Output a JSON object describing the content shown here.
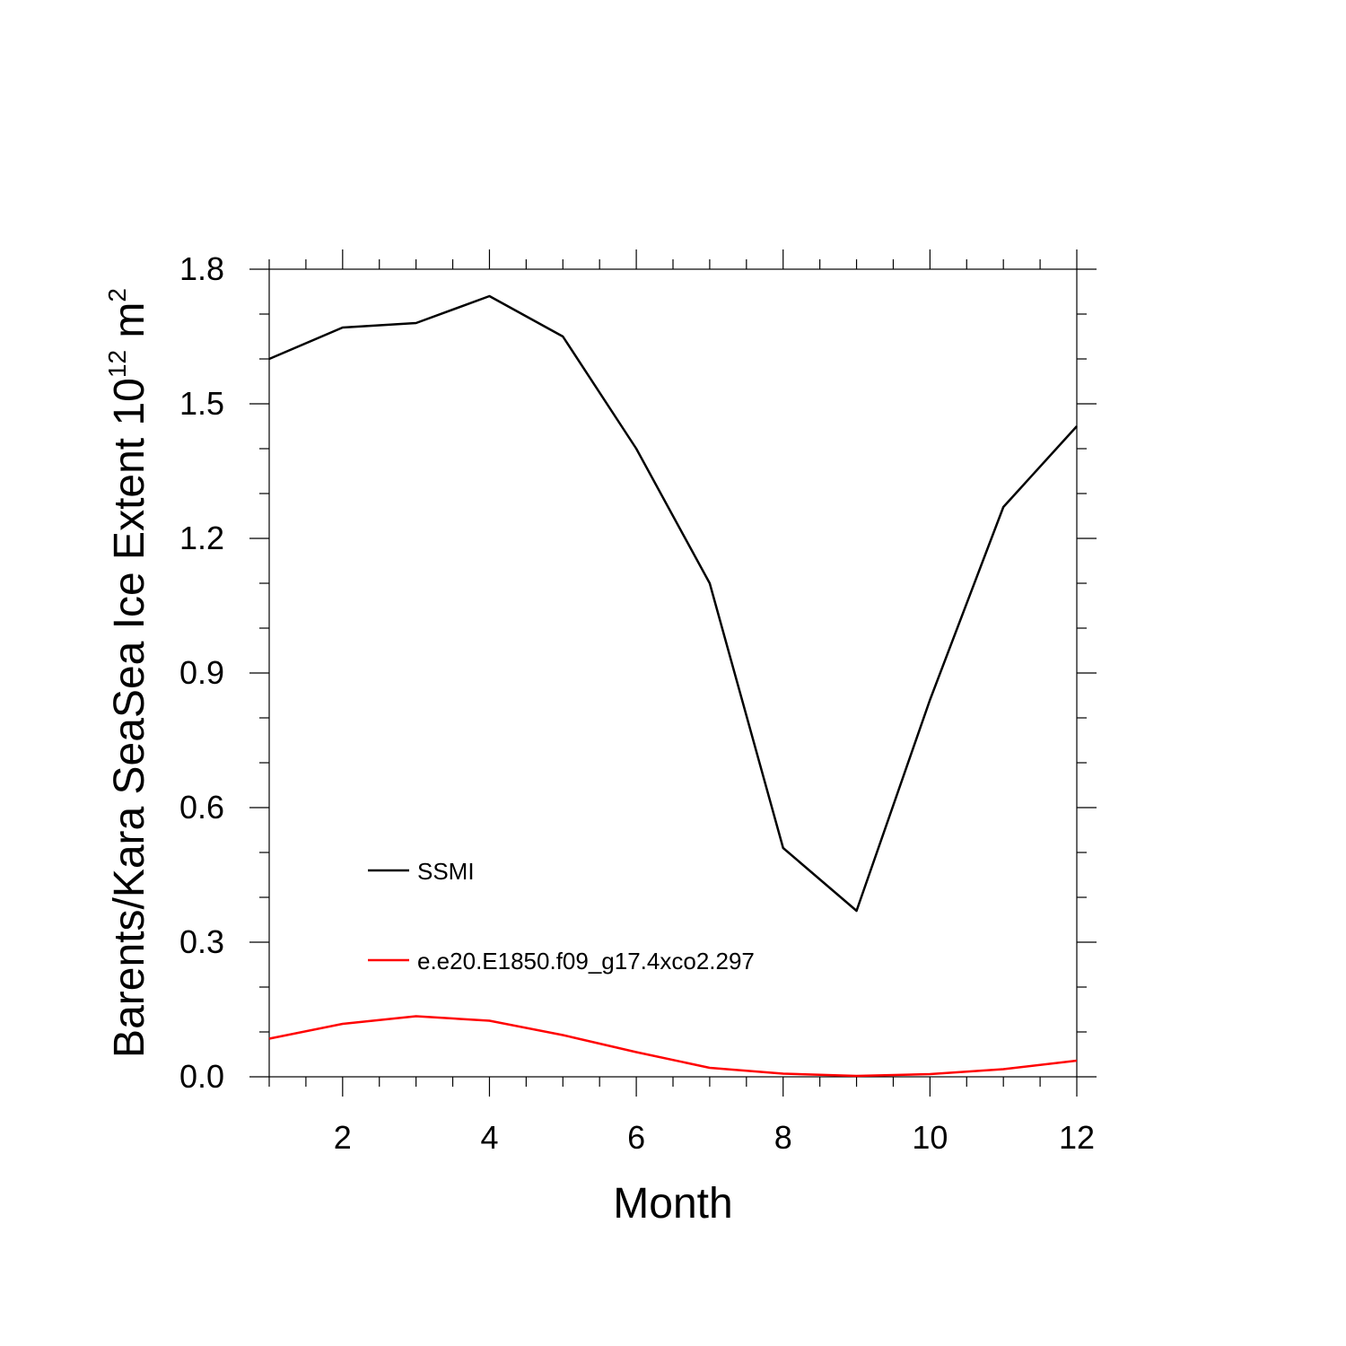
{
  "chart_data": {
    "type": "line",
    "title": "",
    "xlabel": "Month",
    "ylabel_base": "Barents/Kara SeaSea Ice Extent 10",
    "ylabel_exponent": "12",
    "ylabel_unit": " m",
    "ylabel_unit_exponent": "2",
    "xlim": [
      1,
      12
    ],
    "ylim": [
      0,
      1.8
    ],
    "x_ticks": [
      2,
      4,
      6,
      8,
      10,
      12
    ],
    "x_tick_labels": [
      "2",
      "4",
      "6",
      "8",
      "10",
      "12"
    ],
    "y_ticks": [
      0,
      0.3,
      0.6,
      0.9,
      1.2,
      1.5,
      1.8
    ],
    "y_tick_labels": [
      "0.0",
      "0.3",
      "0.6",
      "0.9",
      "1.2",
      "1.5",
      "1.8"
    ],
    "grid": false,
    "legend_position": "lower-left",
    "x": [
      1,
      2,
      3,
      4,
      5,
      6,
      7,
      8,
      9,
      10,
      11,
      12
    ],
    "series": [
      {
        "name": "SSMI",
        "color": "#000000",
        "values": [
          1.6,
          1.67,
          1.68,
          1.74,
          1.65,
          1.4,
          1.1,
          0.51,
          0.37,
          0.84,
          1.27,
          1.45
        ]
      },
      {
        "name": "e.e20.E1850.f09_g17.4xco2.297",
        "color": "#ff0000",
        "values": [
          0.085,
          0.118,
          0.135,
          0.125,
          0.093,
          0.055,
          0.02,
          0.007,
          0.002,
          0.006,
          0.017,
          0.036
        ]
      }
    ]
  }
}
